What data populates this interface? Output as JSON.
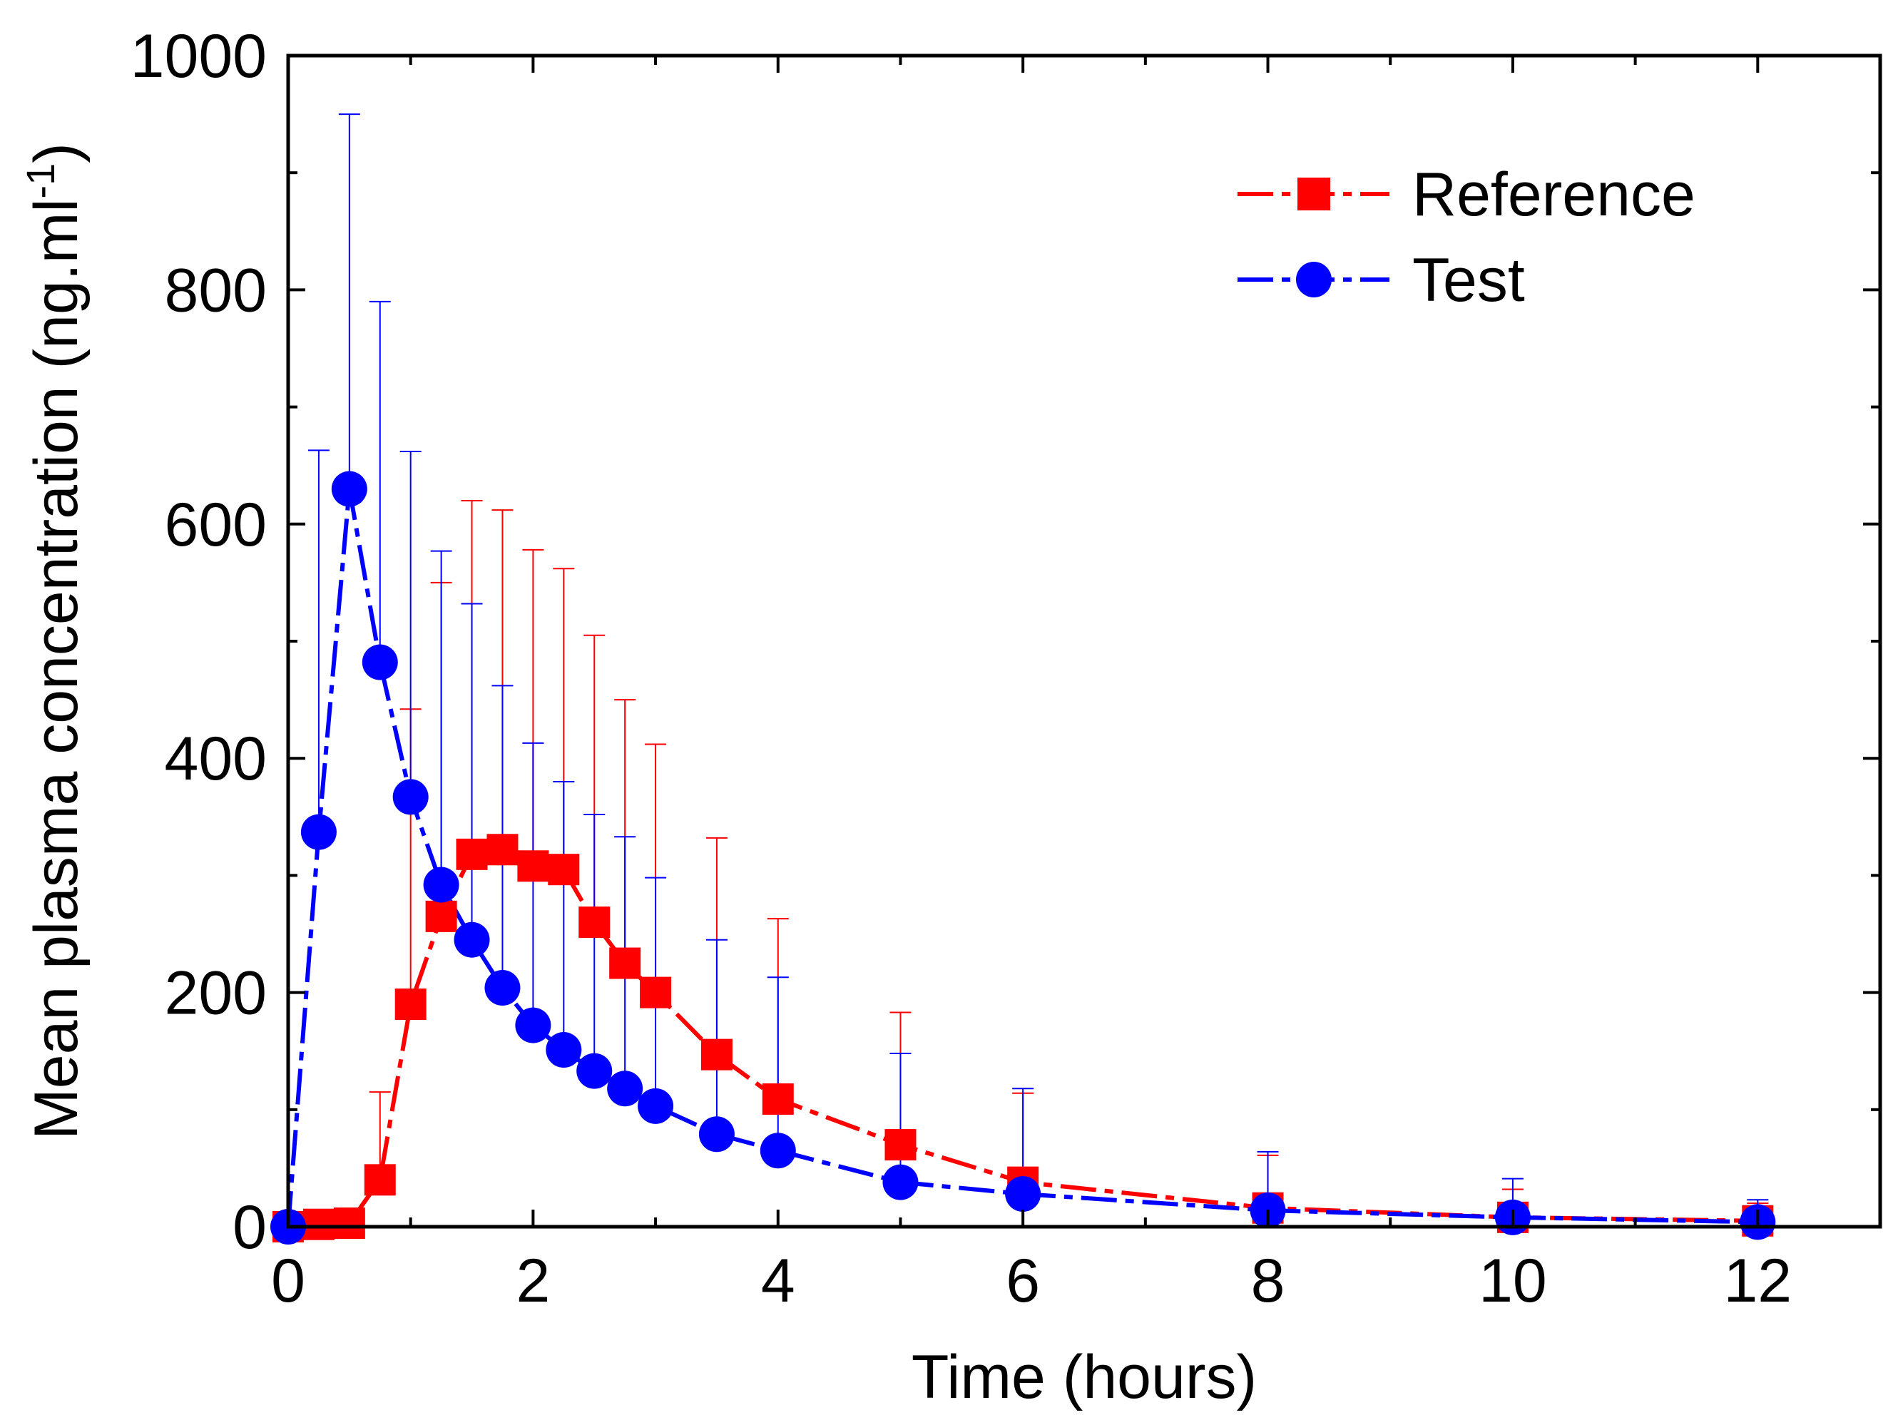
{
  "chart_data": {
    "type": "line",
    "title": "",
    "xlabel": "Time (hours)",
    "ylabel": "Mean plasma concentration (ng.ml",
    "ylabel_superscript": "-1",
    "ylabel_close": ")",
    "xlim": [
      0,
      13
    ],
    "ylim": [
      0,
      1000
    ],
    "x_ticks": [
      0,
      2,
      4,
      6,
      8,
      10,
      12
    ],
    "x_tick_labels": [
      "0",
      "2",
      "4",
      "6",
      "8",
      "10",
      "12"
    ],
    "y_ticks": [
      0,
      200,
      400,
      600,
      800,
      1000
    ],
    "y_tick_labels": [
      "0",
      "200",
      "400",
      "600",
      "800",
      "1000"
    ],
    "grid": false,
    "legend_position": "top-right",
    "series": [
      {
        "name": "Reference",
        "color": "#ff0000",
        "marker": "square",
        "line_style": "dash-dot",
        "x": [
          0,
          0.25,
          0.5,
          0.75,
          1,
          1.25,
          1.5,
          1.75,
          2,
          2.25,
          2.5,
          2.75,
          3,
          3.5,
          4,
          5,
          6,
          8,
          10,
          12
        ],
        "y": [
          0,
          2,
          3,
          40,
          190,
          265,
          318,
          322,
          308,
          305,
          260,
          225,
          200,
          147,
          109,
          70,
          38,
          16,
          8,
          5
        ],
        "err_upper": [
          0,
          0,
          0,
          115,
          442,
          550,
          620,
          612,
          578,
          562,
          505,
          450,
          412,
          332,
          263,
          183,
          114,
          61,
          32,
          20
        ]
      },
      {
        "name": "Test",
        "color": "#0000ff",
        "marker": "circle",
        "line_style": "dash-dot",
        "x": [
          0,
          0.25,
          0.5,
          0.75,
          1,
          1.25,
          1.5,
          1.75,
          2,
          2.25,
          2.5,
          2.75,
          3,
          3.5,
          4,
          5,
          6,
          8,
          10,
          12
        ],
        "y": [
          0,
          337,
          630,
          482,
          367,
          292,
          245,
          204,
          172,
          151,
          133,
          118,
          103,
          79,
          65,
          38,
          28,
          14,
          8,
          4
        ],
        "err_upper": [
          0,
          663,
          950,
          790,
          662,
          577,
          532,
          462,
          413,
          380,
          352,
          333,
          298,
          245,
          213,
          148,
          118,
          64,
          41,
          23
        ]
      }
    ]
  }
}
